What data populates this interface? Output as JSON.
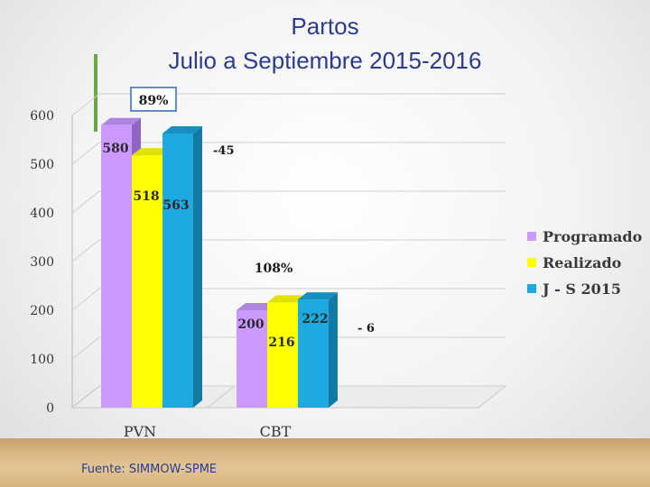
{
  "title_line1": "Partos",
  "title_line2": "Julio a Septiembre 2015-2016",
  "source": "Fuente: SIMMOW-SPME",
  "chart_data": {
    "type": "bar",
    "categories": [
      "PVN",
      "CBT"
    ],
    "series": [
      {
        "name": "Programado",
        "values": [
          580,
          200
        ],
        "color": "#cc99ff",
        "side": "#8f66bf",
        "top": "#ad84e0"
      },
      {
        "name": "Realizado",
        "values": [
          518,
          216
        ],
        "color": "#ffff00",
        "side": "#c7c700",
        "top": "#e2e200"
      },
      {
        "name": "J - S 2015",
        "values": [
          563,
          222
        ],
        "color": "#1ea9e1",
        "side": "#137aa6",
        "top": "#178fc0"
      }
    ],
    "ylim": [
      0,
      600
    ],
    "yticks": [
      0,
      100,
      200,
      300,
      400,
      500,
      600
    ],
    "grid": true,
    "legend": "right",
    "annotations": [
      {
        "text": "89%",
        "category": "PVN",
        "boxed": true
      },
      {
        "text": "-45",
        "category": "PVN"
      },
      {
        "text": "108%",
        "category": "CBT"
      },
      {
        "text": "- 6",
        "category": "CBT"
      }
    ]
  }
}
